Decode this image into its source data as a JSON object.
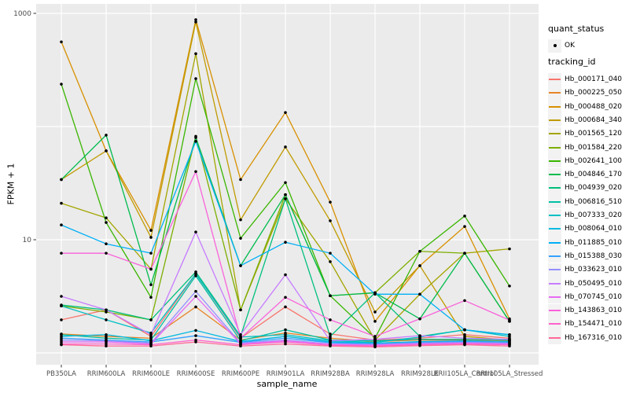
{
  "figure": {
    "panel_background": "#EBEBEB",
    "gridline_color": "#FFFFFF",
    "tick_mark_color": "#333333",
    "tick_label_color": "#4D4D4D",
    "point_color": "#000000"
  },
  "legend": {
    "quant_status_title": "quant_status",
    "quant_status_items": [
      {
        "label": "OK",
        "marker": "point"
      }
    ],
    "tracking_id_title": "tracking_id"
  },
  "chart_data": {
    "type": "line",
    "title": "",
    "xlabel": "sample_name",
    "ylabel": "FPKM + 1",
    "x_scale": "categorical",
    "y_scale": "log10",
    "ylim": [
      0.8,
      1200
    ],
    "grid": true,
    "legend_position": "right",
    "y_gridline_values": [
      1,
      10,
      100,
      1000
    ],
    "y_tick_labels": [
      {
        "value": 1000,
        "label": "1000"
      },
      {
        "value": 10,
        "label": "10"
      }
    ],
    "categories": [
      "PB350LA",
      "RRIM600LA",
      "RRIM600LE",
      "RRIM600SE",
      "RRIM600PE",
      "RRIM901LA",
      "RRIM928BA",
      "RRIM928LA",
      "RRIM928LE",
      "RRII105LA_Control",
      "RRII105LA_Stressed"
    ],
    "series": [
      {
        "name": "Hb_000171_040",
        "color": "#F8766D",
        "values": [
          1.96,
          2.4,
          1.4,
          5.0,
          1.35,
          2.55,
          1.47,
          1.3,
          1.35,
          1.45,
          1.35
        ]
      },
      {
        "name": "Hb_000225_050",
        "color": "#E88526",
        "values": [
          1.47,
          1.4,
          1.35,
          2.55,
          1.3,
          1.5,
          1.35,
          1.26,
          1.3,
          1.3,
          1.28
        ]
      },
      {
        "name": "Hb_000488_020",
        "color": "#D89000",
        "values": [
          560,
          61,
          12.1,
          880,
          34,
          133,
          21.5,
          1.9,
          5.9,
          13.1,
          2.0
        ]
      },
      {
        "name": "Hb_000684_340",
        "color": "#C09B00",
        "values": [
          34,
          61,
          10.5,
          840,
          15,
          66,
          14.7,
          2.3,
          5.9,
          1.4,
          1.3
        ]
      },
      {
        "name": "Hb_001565_120",
        "color": "#A3A500",
        "values": [
          21,
          15.6,
          5.5,
          440,
          2.4,
          23,
          6.4,
          1.3,
          3.3,
          7.6,
          8.3
        ]
      },
      {
        "name": "Hb_001584_220",
        "color": "#7CAE00",
        "values": [
          2.6,
          2.3,
          1.96,
          82,
          2.4,
          25,
          3.2,
          3.4,
          7.9,
          7.6,
          1.9
        ]
      },
      {
        "name": "Hb_002641_100",
        "color": "#39B600",
        "values": [
          237,
          14.2,
          3.1,
          265,
          10.3,
          32,
          3.2,
          1.35,
          7.9,
          16.2,
          3.9
        ]
      },
      {
        "name": "Hb_004846_170",
        "color": "#00BB4E",
        "values": [
          34,
          84,
          4.0,
          80,
          5.9,
          25,
          3.2,
          3.4,
          2.0,
          7.6,
          1.9
        ]
      },
      {
        "name": "Hb_004939_020",
        "color": "#00BF7D",
        "values": [
          2.65,
          2.4,
          1.96,
          5.2,
          1.4,
          23,
          1.4,
          3.4,
          1.4,
          1.6,
          1.45
        ]
      },
      {
        "name": "Hb_006816_510",
        "color": "#00C1A3",
        "values": [
          1.45,
          1.35,
          1.3,
          4.8,
          1.28,
          1.6,
          1.3,
          1.28,
          1.32,
          1.32,
          1.3
        ]
      },
      {
        "name": "Hb_007333_020",
        "color": "#00BFC4",
        "values": [
          2.6,
          1.96,
          1.5,
          5.0,
          1.38,
          1.45,
          1.28,
          1.24,
          1.38,
          1.6,
          1.4
        ]
      },
      {
        "name": "Hb_008064_010",
        "color": "#00BAE0",
        "values": [
          1.4,
          1.45,
          1.28,
          1.58,
          1.26,
          1.4,
          1.25,
          1.22,
          1.26,
          1.28,
          1.26
        ]
      },
      {
        "name": "Hb_011885_010",
        "color": "#00B0F6",
        "values": [
          13.5,
          9.2,
          7.6,
          74,
          5.9,
          9.5,
          7.6,
          3.3,
          3.3,
          1.6,
          1.45
        ]
      },
      {
        "name": "Hb_015388_030",
        "color": "#35A2FF",
        "values": [
          1.35,
          1.3,
          1.25,
          1.42,
          1.24,
          1.35,
          1.23,
          1.2,
          1.24,
          1.26,
          1.24
        ]
      },
      {
        "name": "Hb_033623_010",
        "color": "#9590FF",
        "values": [
          1.3,
          1.28,
          1.22,
          3.5,
          1.22,
          1.3,
          1.2,
          1.19,
          1.22,
          1.24,
          1.22
        ]
      },
      {
        "name": "Hb_050495_010",
        "color": "#C77CFF",
        "values": [
          3.16,
          2.4,
          1.45,
          11.7,
          1.45,
          4.9,
          1.28,
          1.32,
          1.42,
          1.35,
          1.32
        ]
      },
      {
        "name": "Hb_070745_010",
        "color": "#E76BF3",
        "values": [
          1.25,
          1.25,
          1.2,
          3.16,
          1.2,
          1.28,
          1.19,
          1.17,
          1.2,
          1.22,
          1.2
        ]
      },
      {
        "name": "Hb_143863_010",
        "color": "#FA62DB",
        "values": [
          7.6,
          7.6,
          5.5,
          40,
          1.35,
          3.1,
          1.96,
          1.4,
          2.0,
          2.9,
          1.95
        ]
      },
      {
        "name": "Hb_154471_010",
        "color": "#FF61CC",
        "values": [
          1.2,
          1.2,
          1.18,
          1.3,
          1.18,
          1.25,
          1.17,
          1.15,
          1.18,
          1.2,
          1.18
        ]
      },
      {
        "name": "Hb_167316_010",
        "color": "#FF6A98",
        "values": [
          1.18,
          1.15,
          1.15,
          1.25,
          1.15,
          1.2,
          1.15,
          1.13,
          1.16,
          1.18,
          1.15
        ]
      }
    ]
  }
}
